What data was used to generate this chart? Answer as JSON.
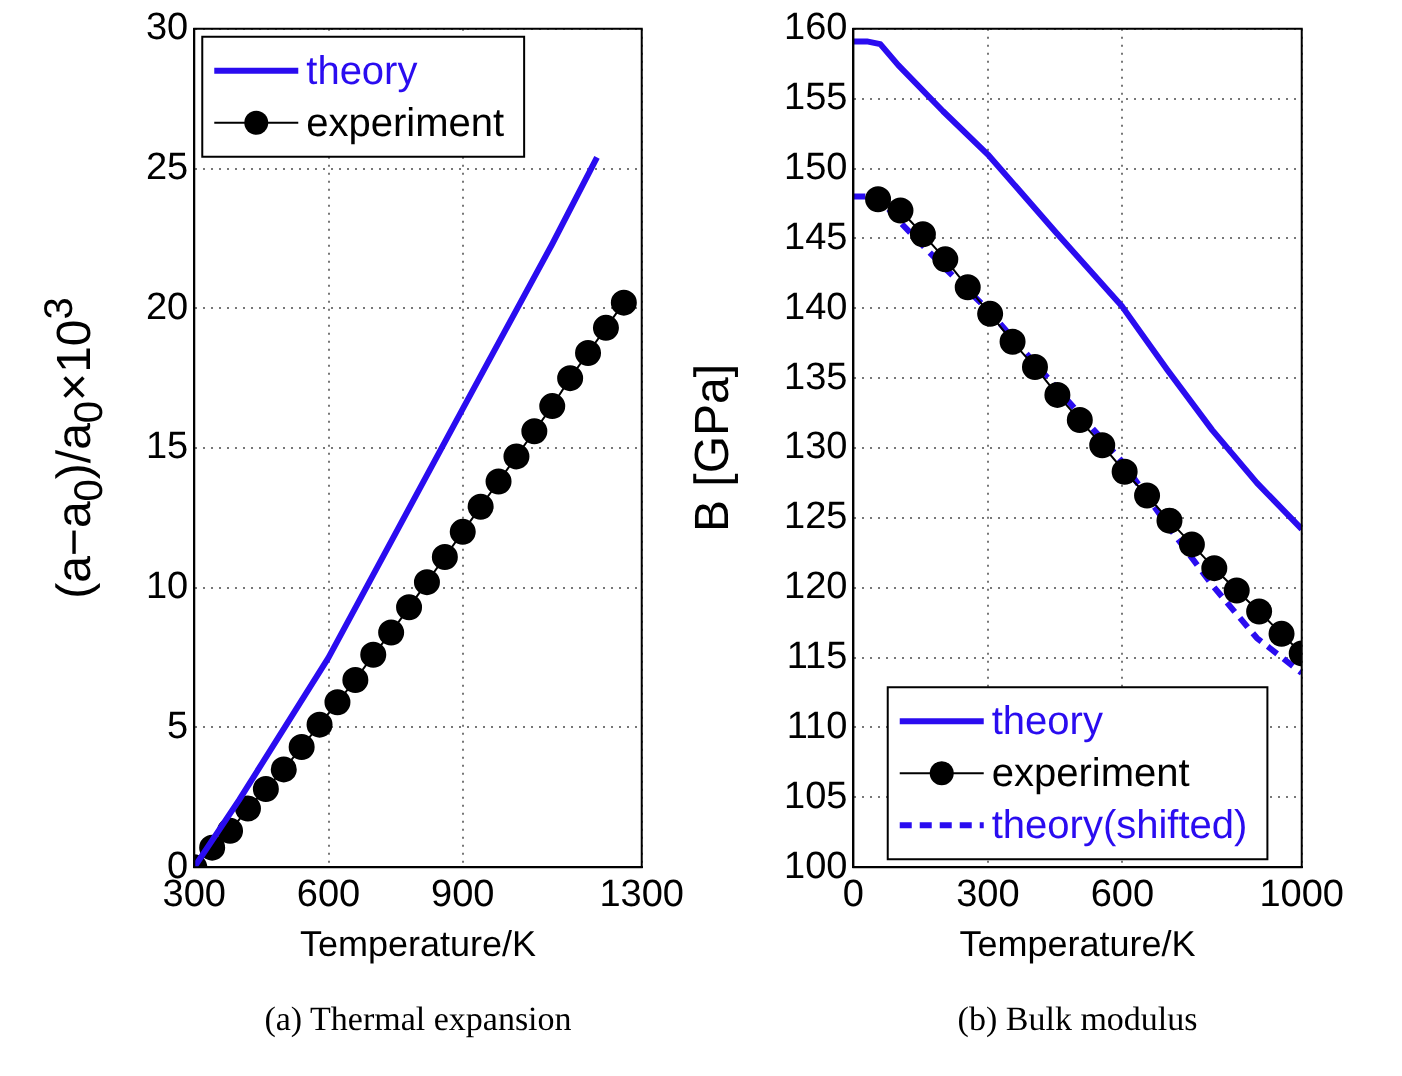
{
  "chart_data": [
    {
      "type": "line",
      "xlabel": "Temperature/K",
      "ylabel": "(a−a$_{0}$)/a$_{0}$×10$^{3}$",
      "annotations": [
        "(a) Thermal expansion"
      ],
      "xlim": [
        300,
        1300
      ],
      "xticks": [
        300,
        600,
        900,
        1300
      ],
      "ylim": [
        0,
        30
      ],
      "yticks": [
        0,
        5,
        10,
        15,
        20,
        25,
        30
      ],
      "grid": true,
      "legend": "top left",
      "series": [
        {
          "name": "theory",
          "color": "#2a0cf0",
          "marker": "none",
          "line_style": "solid",
          "x": [
            300,
            400,
            600,
            900,
            1100,
            1200
          ],
          "values": [
            0,
            2.4,
            7.5,
            16.4,
            22.3,
            25.4
          ]
        },
        {
          "name": "experiment",
          "color": "#000000",
          "marker": "circle",
          "line_style": "solid",
          "x": [
            300,
            340,
            380,
            420,
            460,
            500,
            540,
            580,
            620,
            660,
            700,
            740,
            780,
            820,
            860,
            900,
            940,
            980,
            1020,
            1060,
            1100,
            1140,
            1180,
            1220,
            1260
          ],
          "values": [
            0,
            0.7,
            1.3,
            2.1,
            2.8,
            3.5,
            4.3,
            5.1,
            5.9,
            6.7,
            7.6,
            8.4,
            9.3,
            10.2,
            11.1,
            12.0,
            12.9,
            13.8,
            14.7,
            15.6,
            16.5,
            17.5,
            18.4,
            19.3,
            20.2
          ]
        }
      ]
    },
    {
      "type": "line",
      "xlabel": "Temperature/K",
      "ylabel": "B [GPa]",
      "annotations": [
        "(b) Bulk modulus"
      ],
      "xlim": [
        0,
        1000
      ],
      "xticks": [
        0,
        300,
        600,
        1000
      ],
      "ylim": [
        100,
        160
      ],
      "yticks": [
        100,
        105,
        110,
        115,
        120,
        125,
        130,
        135,
        140,
        145,
        150,
        155,
        160
      ],
      "grid": true,
      "legend": "bottom",
      "series": [
        {
          "name": "theory",
          "color": "#2a0cf0",
          "marker": "none",
          "line_style": "solid",
          "x": [
            0,
            30,
            60,
            100,
            200,
            300,
            450,
            600,
            700,
            800,
            900,
            1000
          ],
          "values": [
            159.1,
            159.1,
            158.9,
            157.4,
            154.1,
            151.0,
            145.5,
            140.1,
            135.6,
            131.3,
            127.5,
            124.2
          ]
        },
        {
          "name": "experiment",
          "color": "#000000",
          "marker": "circle",
          "line_style": "solid",
          "x": [
            55,
            105,
            155,
            205,
            255,
            305,
            355,
            405,
            455,
            505,
            555,
            605,
            655,
            705,
            755,
            805,
            855,
            905,
            955,
            1000
          ],
          "values": [
            147.8,
            147.0,
            145.3,
            143.5,
            141.5,
            139.6,
            137.6,
            135.8,
            133.8,
            132.0,
            130.2,
            128.3,
            126.6,
            124.8,
            123.1,
            121.4,
            119.8,
            118.3,
            116.7,
            115.3
          ]
        },
        {
          "name": "theory(shifted)",
          "color": "#2a0cf0",
          "marker": "none",
          "line_style": "dashed",
          "x": [
            0,
            30,
            60,
            100,
            200,
            300,
            450,
            600,
            700,
            800,
            900,
            1000
          ],
          "values": [
            148.0,
            148.0,
            147.8,
            146.3,
            143.0,
            139.9,
            134.4,
            129.0,
            124.5,
            120.2,
            116.4,
            113.9
          ]
        }
      ]
    }
  ]
}
